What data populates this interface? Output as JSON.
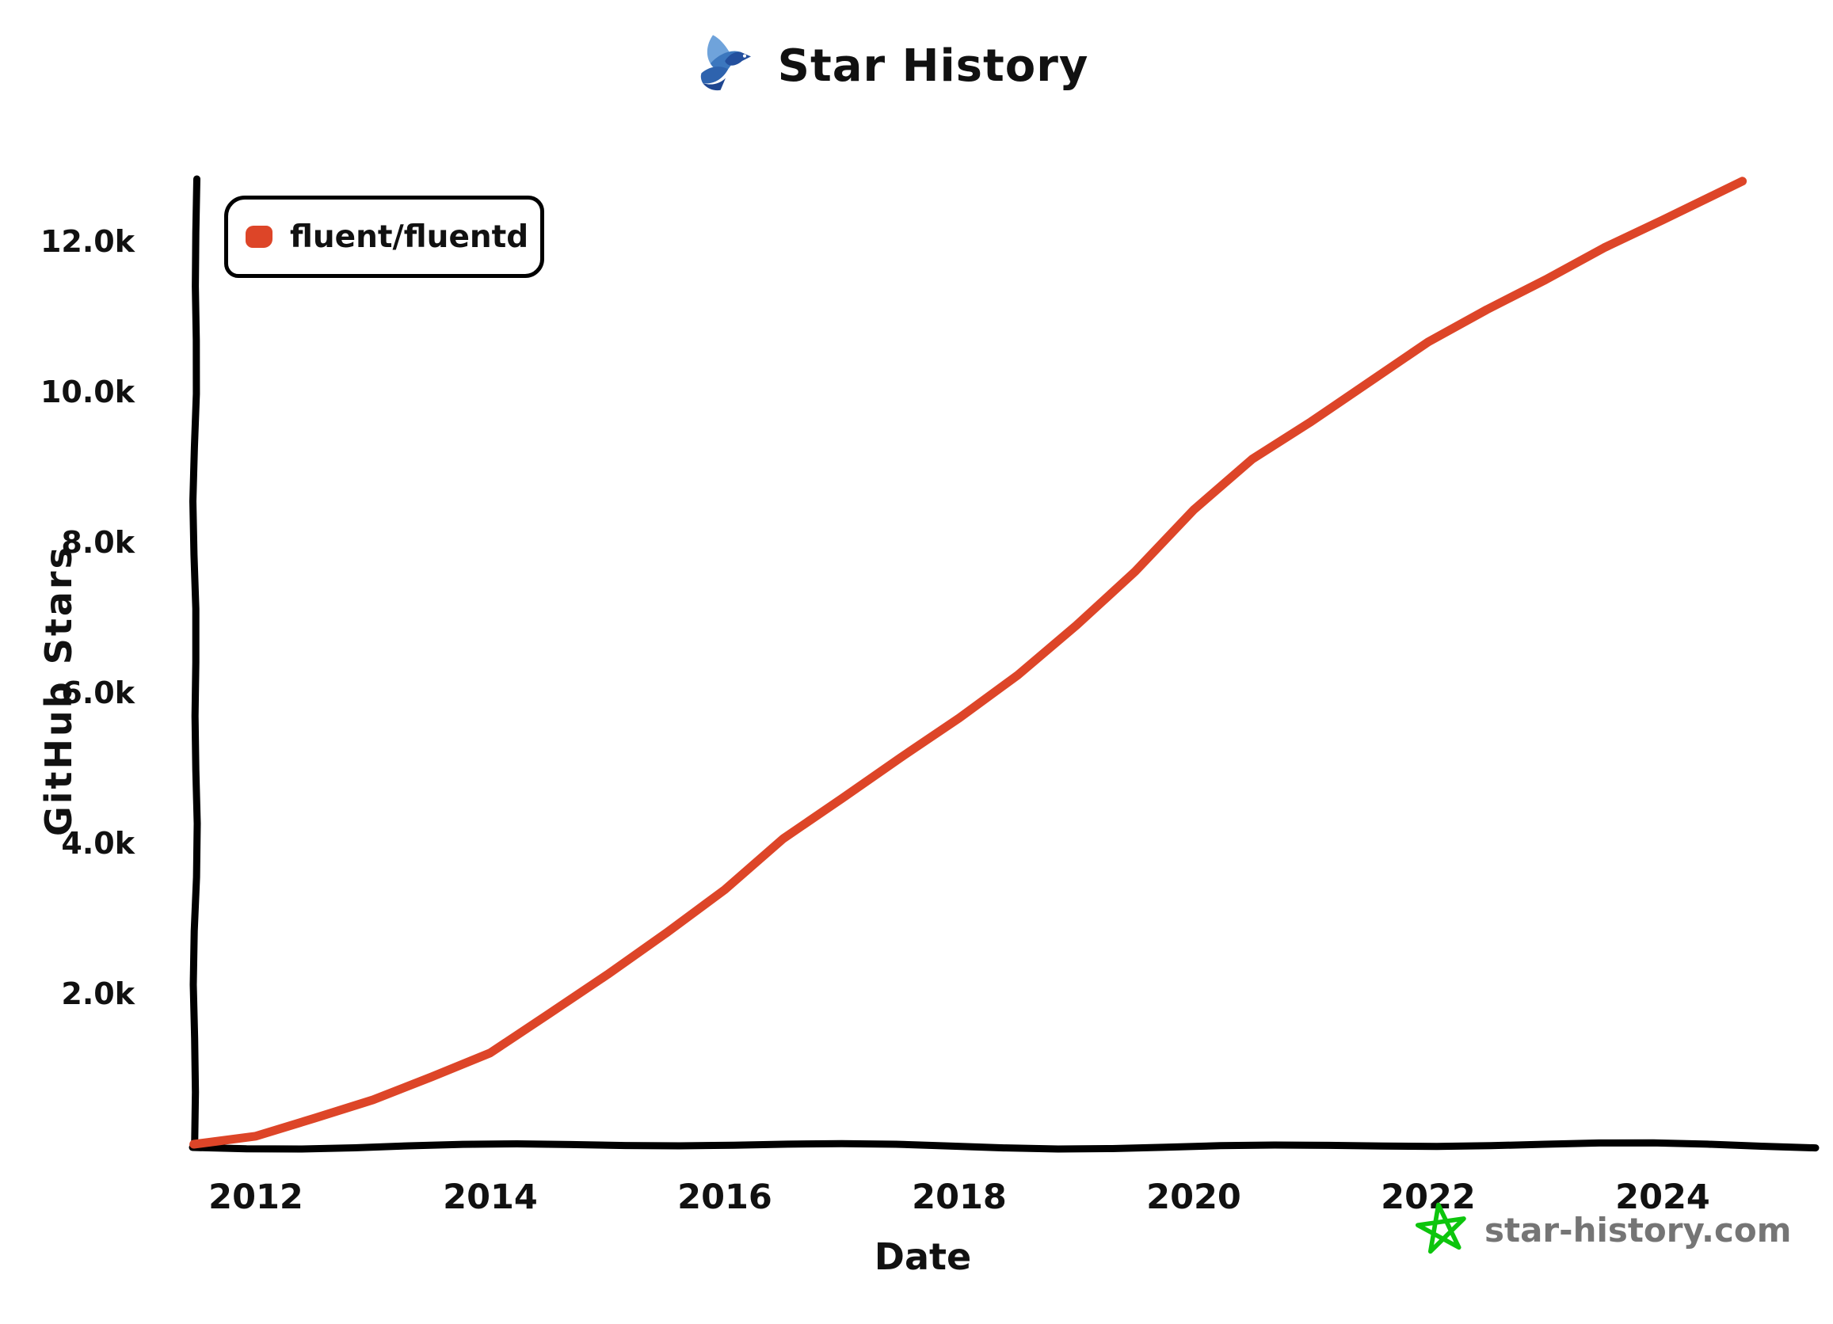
{
  "title": {
    "text": "Star History"
  },
  "legend": {
    "items": [
      {
        "label": "fluent/fluentd",
        "color": "#DD4528"
      }
    ]
  },
  "axes": {
    "x_label": "Date",
    "y_label": "GitHub Stars",
    "x_tick_labels": [
      "2012",
      "2014",
      "2016",
      "2018",
      "2020",
      "2022",
      "2024"
    ],
    "y_tick_labels": [
      "2.0k",
      "4.0k",
      "6.0k",
      "8.0k",
      "10.0k",
      "12.0k"
    ]
  },
  "watermark": {
    "text": "star-history.com",
    "star_color": "#0DC50D",
    "text_color": "#757575"
  },
  "colors": {
    "series": "#DD4528",
    "axis": "#000000",
    "background": "#FFFFFF"
  },
  "chart_data": {
    "type": "line",
    "title": "Star History",
    "xlabel": "Date",
    "ylabel": "GitHub Stars",
    "x_unit": "year",
    "y_unit": "GitHub stars (thousands)",
    "xlim": [
      2011.45,
      2025.3
    ],
    "ylim": [
      0,
      12.9
    ],
    "x_ticks": [
      2012,
      2014,
      2016,
      2018,
      2020,
      2022,
      2024
    ],
    "y_ticks": [
      2,
      4,
      6,
      8,
      10,
      12
    ],
    "grid": false,
    "legend_position": "top-left",
    "series": [
      {
        "name": "fluent/fluentd",
        "color": "#DD4528",
        "points": [
          [
            2011.47,
            0.0
          ],
          [
            2012.0,
            0.12
          ],
          [
            2012.5,
            0.33
          ],
          [
            2013.0,
            0.6
          ],
          [
            2013.5,
            0.9
          ],
          [
            2014.0,
            1.2
          ],
          [
            2014.5,
            1.75
          ],
          [
            2015.0,
            2.25
          ],
          [
            2015.5,
            2.8
          ],
          [
            2016.0,
            3.4
          ],
          [
            2016.5,
            4.05
          ],
          [
            2017.0,
            4.6
          ],
          [
            2017.5,
            5.15
          ],
          [
            2018.0,
            5.65
          ],
          [
            2018.5,
            6.25
          ],
          [
            2019.0,
            6.9
          ],
          [
            2019.5,
            7.6
          ],
          [
            2020.0,
            8.45
          ],
          [
            2020.5,
            9.1
          ],
          [
            2021.0,
            9.6
          ],
          [
            2021.5,
            10.15
          ],
          [
            2022.0,
            10.65
          ],
          [
            2022.5,
            11.1
          ],
          [
            2023.0,
            11.5
          ],
          [
            2023.5,
            11.9
          ],
          [
            2024.0,
            12.3
          ],
          [
            2024.68,
            12.8
          ]
        ]
      }
    ]
  }
}
